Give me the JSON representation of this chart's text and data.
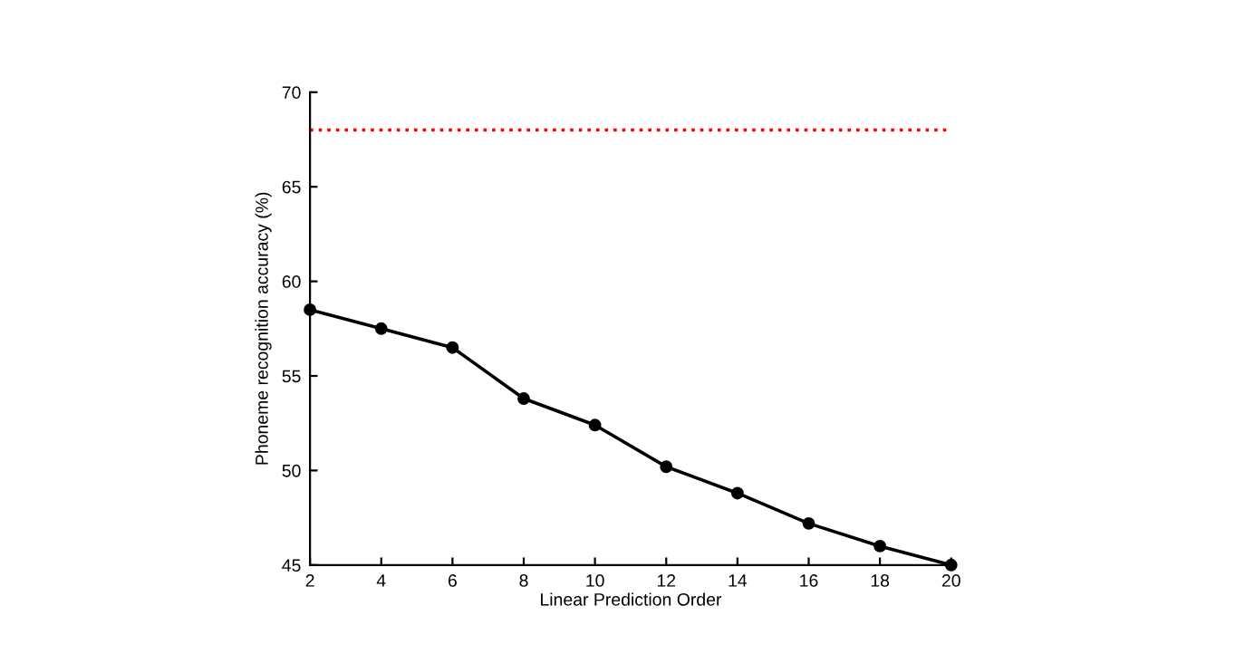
{
  "chart_data": {
    "type": "line",
    "xlabel": "Linear Prediction Order",
    "ylabel": "Phoneme recognition accuracy (%)",
    "x": [
      2,
      4,
      6,
      8,
      10,
      12,
      14,
      16,
      18,
      20
    ],
    "series": [
      {
        "color": "#000000",
        "values": [
          58.5,
          57.5,
          56.5,
          53.8,
          52.4,
          50.2,
          48.8,
          47.2,
          46.0,
          45.0
        ]
      }
    ],
    "marker": "circle",
    "line_style": "solid",
    "xlim": [
      2,
      20
    ],
    "xticks": [
      2,
      4,
      6,
      8,
      10,
      12,
      14,
      16,
      18,
      20
    ],
    "ylim": [
      45,
      70
    ],
    "yticks": [
      45,
      50,
      55,
      60,
      65,
      70
    ],
    "ref_lines": [
      {
        "axis": "y",
        "value": 68,
        "color": "#ff0000",
        "line_style": "dotted"
      }
    ],
    "grid": false
  }
}
